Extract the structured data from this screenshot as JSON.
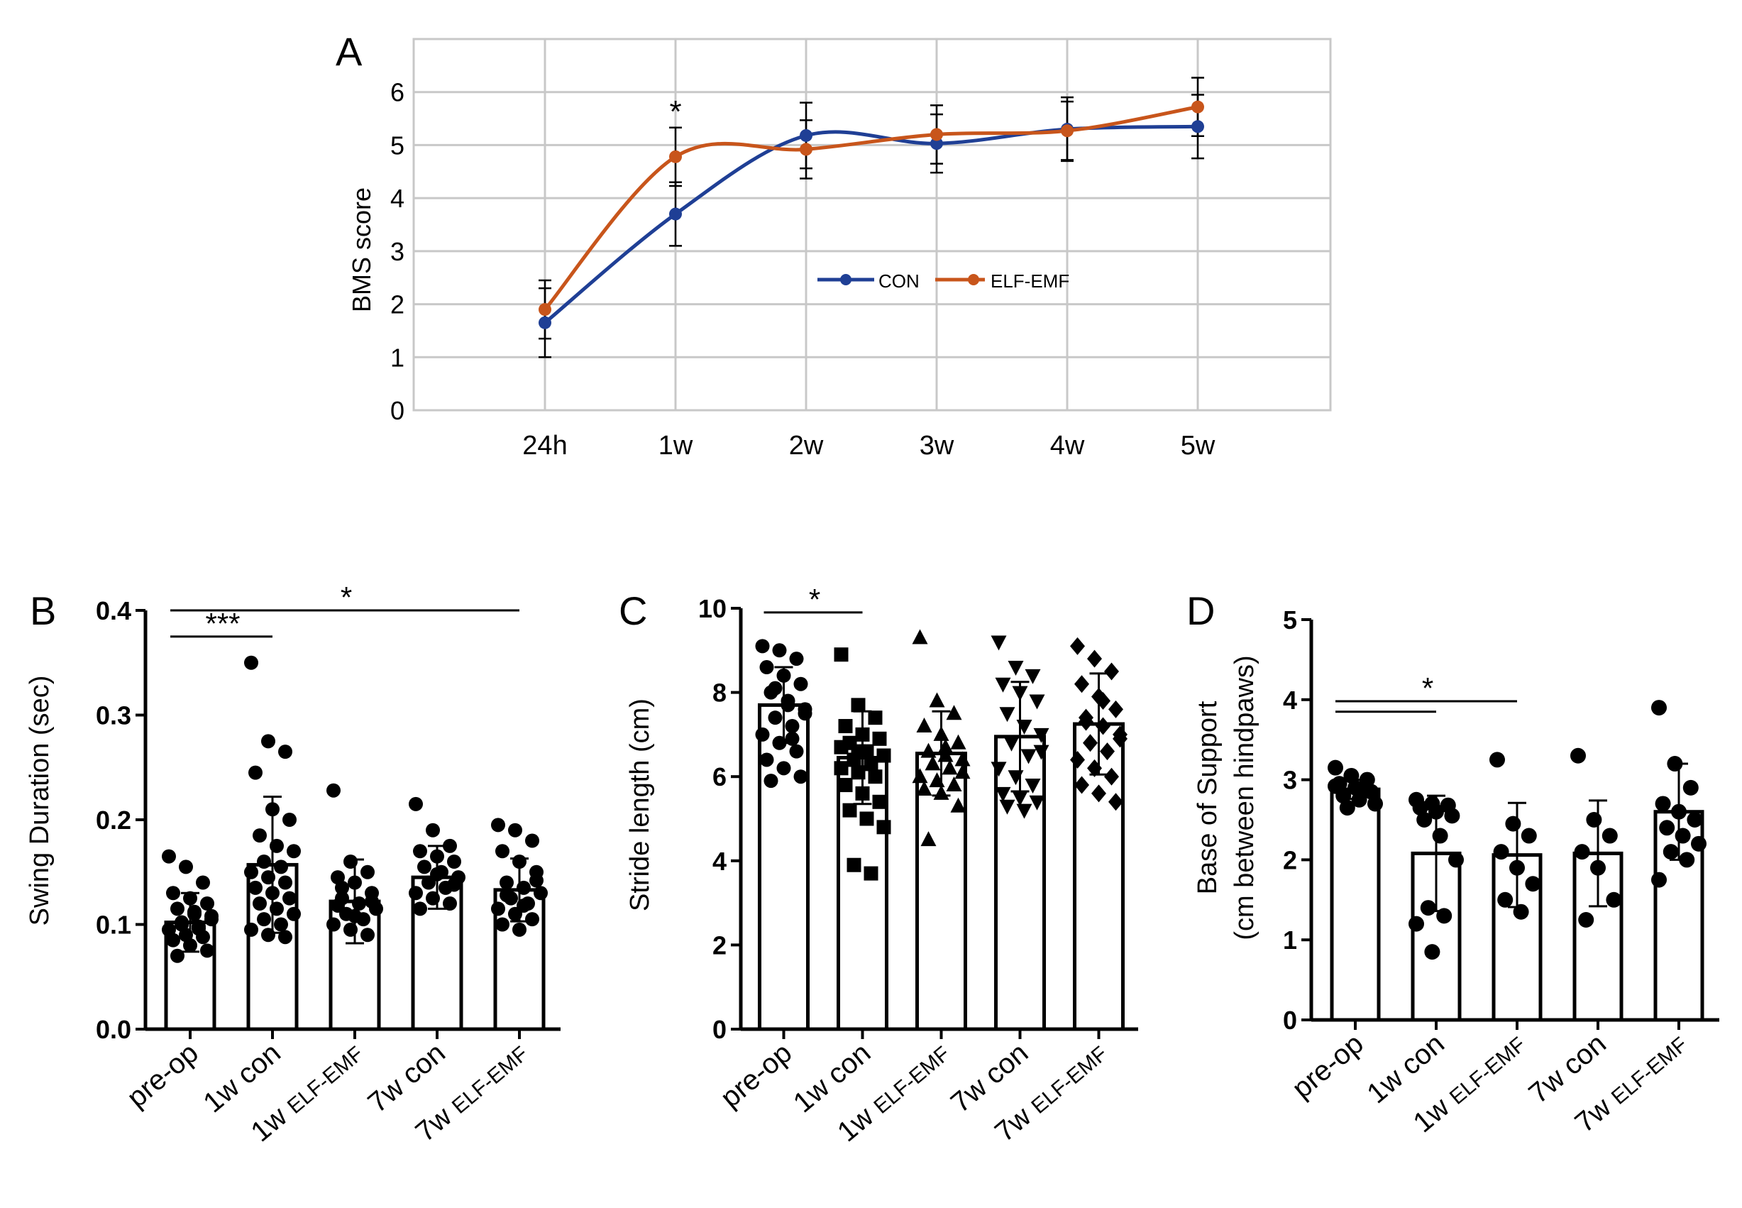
{
  "chart_data": [
    {
      "panel": "A",
      "type": "line",
      "ylabel": "BMS score",
      "categories": [
        "24h",
        "1w",
        "2w",
        "3w",
        "4w",
        "5w"
      ],
      "ylim": [
        0,
        7
      ],
      "yticks": [
        0,
        1,
        2,
        3,
        4,
        5,
        6
      ],
      "grid": true,
      "legend": "center-right",
      "annotations": [
        {
          "category": "1w",
          "text": "*"
        }
      ],
      "series": [
        {
          "name": "CON",
          "color": "#1f3f95",
          "values": [
            1.65,
            3.7,
            5.18,
            5.03,
            5.3,
            5.35
          ],
          "errors": [
            0.65,
            0.6,
            0.62,
            0.55,
            0.6,
            0.6
          ]
        },
        {
          "name": "ELF-EMF",
          "color": "#c8551b",
          "values": [
            1.9,
            4.78,
            4.92,
            5.2,
            5.27,
            5.72
          ],
          "errors": [
            0.55,
            0.55,
            0.55,
            0.55,
            0.55,
            0.55
          ]
        }
      ]
    },
    {
      "panel": "B",
      "type": "bar",
      "ylabel": "Swing Duration (sec)",
      "categories": [
        "pre-op",
        "1w con",
        "1w ELF-EMF",
        "7w con",
        "7w ELF-EMF"
      ],
      "ylim": [
        0,
        0.4
      ],
      "yticks": [
        "0.0",
        "0.1",
        "0.2",
        "0.3",
        "0.4"
      ],
      "values": [
        0.102,
        0.157,
        0.122,
        0.145,
        0.133
      ],
      "errors": [
        0.028,
        0.065,
        0.04,
        0.03,
        0.03
      ],
      "marker": "circle",
      "points": [
        [
          0.165,
          0.155,
          0.14,
          0.13,
          0.125,
          0.12,
          0.115,
          0.11,
          0.105,
          0.1,
          0.098,
          0.095,
          0.09,
          0.088,
          0.085,
          0.08,
          0.075,
          0.07,
          0.112,
          0.108,
          0.102,
          0.096
        ],
        [
          0.35,
          0.275,
          0.265,
          0.245,
          0.21,
          0.2,
          0.185,
          0.175,
          0.17,
          0.16,
          0.155,
          0.15,
          0.145,
          0.14,
          0.135,
          0.13,
          0.125,
          0.12,
          0.115,
          0.11,
          0.105,
          0.1,
          0.095,
          0.09,
          0.088
        ],
        [
          0.228,
          0.16,
          0.15,
          0.145,
          0.14,
          0.13,
          0.125,
          0.12,
          0.115,
          0.11,
          0.105,
          0.1,
          0.095,
          0.09,
          0.118,
          0.108,
          0.122,
          0.135
        ],
        [
          0.215,
          0.19,
          0.175,
          0.17,
          0.165,
          0.16,
          0.155,
          0.15,
          0.145,
          0.14,
          0.135,
          0.13,
          0.125,
          0.12,
          0.115,
          0.148,
          0.138
        ],
        [
          0.195,
          0.19,
          0.18,
          0.17,
          0.16,
          0.15,
          0.14,
          0.135,
          0.13,
          0.125,
          0.12,
          0.115,
          0.11,
          0.105,
          0.1,
          0.095,
          0.142,
          0.128,
          0.118
        ]
      ],
      "significance": [
        {
          "from": 0,
          "to": 1,
          "label": "***",
          "y": 0.375
        },
        {
          "from": 0,
          "to": 4,
          "label": "*",
          "y": 0.4
        }
      ]
    },
    {
      "panel": "C",
      "type": "bar",
      "ylabel": "Stride length (cm)",
      "categories": [
        "pre-op",
        "1w con",
        "1w ELF-EMF",
        "7w con",
        "7w ELF-EMF"
      ],
      "ylim": [
        0,
        10
      ],
      "yticks": [
        "0",
        "2",
        "4",
        "6",
        "8",
        "10"
      ],
      "values": [
        7.7,
        6.45,
        6.55,
        6.95,
        7.25
      ],
      "errors": [
        0.9,
        1.1,
        1.0,
        1.3,
        1.2
      ],
      "markers": [
        "circle",
        "square",
        "triangle-up",
        "triangle-down",
        "diamond"
      ],
      "points": [
        [
          9.1,
          9.0,
          8.8,
          8.6,
          8.4,
          8.2,
          8.0,
          7.8,
          7.6,
          7.4,
          7.2,
          7.0,
          6.8,
          6.6,
          6.4,
          6.2,
          6.0,
          5.9,
          7.7,
          7.5,
          8.1,
          6.9
        ],
        [
          8.9,
          7.7,
          7.4,
          7.2,
          7.0,
          6.9,
          6.8,
          6.6,
          6.5,
          6.4,
          6.3,
          6.2,
          6.1,
          6.0,
          5.8,
          5.6,
          5.4,
          5.2,
          5.0,
          4.8,
          3.9,
          3.7,
          6.7,
          6.6
        ],
        [
          9.3,
          7.8,
          7.5,
          7.2,
          7.0,
          6.8,
          6.6,
          6.5,
          6.4,
          6.3,
          6.2,
          6.0,
          5.9,
          5.8,
          5.7,
          5.6,
          5.3,
          4.5,
          6.7,
          6.1
        ],
        [
          9.2,
          8.6,
          8.4,
          8.2,
          8.0,
          7.8,
          7.5,
          7.2,
          7.0,
          6.8,
          6.5,
          6.2,
          6.0,
          5.8,
          5.6,
          5.5,
          5.4,
          5.3,
          5.2,
          6.6
        ],
        [
          9.1,
          8.8,
          8.5,
          8.2,
          7.9,
          7.6,
          7.4,
          7.2,
          7.0,
          6.8,
          6.6,
          6.4,
          6.2,
          6.0,
          5.8,
          5.6,
          5.4,
          7.3,
          7.8,
          6.9
        ]
      ],
      "significance": [
        {
          "from": 0,
          "to": 1,
          "label": "*",
          "y": 9.9
        }
      ]
    },
    {
      "panel": "D",
      "type": "bar",
      "ylabel": "Base of Support",
      "ylabel2": "(cm between hindpaws)",
      "categories": [
        "pre-op",
        "1w con",
        "1w ELF-EMF",
        "7w con",
        "7w ELF-EMF"
      ],
      "ylim": [
        0,
        5
      ],
      "yticks": [
        "0",
        "1",
        "2",
        "3",
        "4",
        "5"
      ],
      "values": [
        2.88,
        2.08,
        2.06,
        2.08,
        2.6
      ],
      "errors": [
        0.12,
        0.72,
        0.65,
        0.66,
        0.6
      ],
      "marker": "circle",
      "points": [
        [
          3.15,
          3.05,
          3.0,
          2.95,
          2.9,
          2.85,
          2.8,
          2.75,
          2.7,
          2.65,
          2.88,
          2.92
        ],
        [
          2.75,
          2.7,
          2.68,
          2.65,
          2.6,
          2.55,
          2.5,
          2.3,
          2.0,
          1.4,
          1.3,
          1.2,
          0.85
        ],
        [
          3.25,
          2.45,
          2.3,
          2.1,
          1.9,
          1.7,
          1.5,
          1.35
        ],
        [
          3.3,
          2.5,
          2.3,
          2.1,
          1.9,
          1.5,
          1.25
        ],
        [
          3.9,
          3.2,
          2.9,
          2.7,
          2.6,
          2.5,
          2.4,
          2.3,
          2.2,
          2.1,
          2.0,
          1.75
        ]
      ],
      "significance": [
        {
          "from": 0,
          "to": 1,
          "label": "",
          "y": 3.85
        },
        {
          "from": 0,
          "to": 2,
          "label": "*",
          "y": 3.98
        }
      ]
    }
  ],
  "colors": {
    "con": "#1f3f95",
    "elf": "#c8551b",
    "grid": "#c8c8c8",
    "ink": "#000000"
  }
}
